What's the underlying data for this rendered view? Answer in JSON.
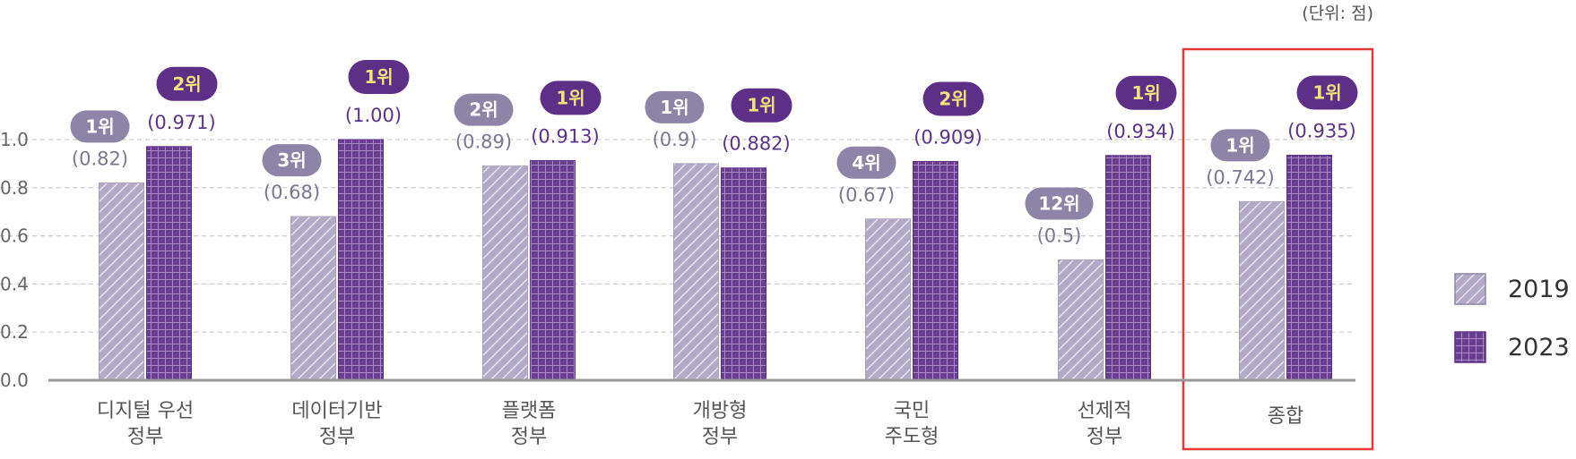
{
  "unit_label": "(단위: 점)",
  "colors": {
    "series_2019": "#b3aac8",
    "series_2019_hatch": "#ffffff",
    "series_2023": "#6a3f92",
    "series_2023_grid": "#a889c6",
    "rank_2019_badge": "#8e84a7",
    "rank_2023_badge": "#5e2f86",
    "rank_2023_text": "#f1e27a",
    "value_2019_text": "#7d7690",
    "value_2023_text": "#5a3487",
    "axis": "#999999",
    "grid": "#cccccc",
    "highlight_box": "#e53935",
    "category_text": "#555555"
  },
  "chart_data": {
    "type": "bar",
    "ylim": [
      0,
      1.0
    ],
    "yticks": [
      "0.0",
      "0.2",
      "0.4",
      "0.6",
      "0.8",
      "1.0"
    ],
    "grid": true,
    "legend_position": "right",
    "categories": [
      [
        "디지털 우선",
        "정부"
      ],
      [
        "데이터기반",
        "정부"
      ],
      [
        "플랫폼",
        "정부"
      ],
      [
        "개방형",
        "정부"
      ],
      [
        "국민",
        "주도형"
      ],
      [
        "선제적",
        "정부"
      ],
      [
        "종합"
      ]
    ],
    "series": [
      {
        "name": "2019",
        "values": [
          0.82,
          0.68,
          0.89,
          0.9,
          0.67,
          0.5,
          0.742
        ],
        "value_labels": [
          "(0.82)",
          "(0.68)",
          "(0.89)",
          "(0.9)",
          "(0.67)",
          "(0.5)",
          "(0.742)"
        ],
        "rank_labels": [
          "1위",
          "3위",
          "2위",
          "1위",
          "4위",
          "12위",
          "1위"
        ]
      },
      {
        "name": "2023",
        "values": [
          0.971,
          1.0,
          0.913,
          0.882,
          0.909,
          0.934,
          0.935
        ],
        "value_labels": [
          "(0.971)",
          "(1.00)",
          "(0.913)",
          "(0.882)",
          "(0.909)",
          "(0.934)",
          "(0.935)"
        ],
        "rank_labels": [
          "2위",
          "1위",
          "1위",
          "1위",
          "2위",
          "1위",
          "1위"
        ]
      }
    ],
    "highlighted_category": "종합"
  }
}
